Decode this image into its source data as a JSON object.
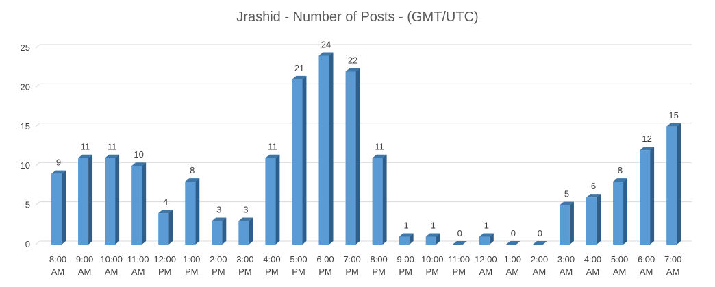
{
  "chart_data": {
    "type": "bar",
    "title": "Jrashid - Number of Posts - (GMT/UTC)",
    "xlabel": "",
    "ylabel": "",
    "ylim": [
      0,
      25
    ],
    "yticks": [
      0,
      5,
      10,
      15,
      20,
      25
    ],
    "grid": true,
    "legend": "none",
    "categories": [
      [
        "8:00",
        "AM"
      ],
      [
        "9:00",
        "AM"
      ],
      [
        "10:00",
        "AM"
      ],
      [
        "11:00",
        "AM"
      ],
      [
        "12:00",
        "PM"
      ],
      [
        "1:00",
        "PM"
      ],
      [
        "2:00",
        "PM"
      ],
      [
        "3:00",
        "PM"
      ],
      [
        "4:00",
        "PM"
      ],
      [
        "5:00",
        "PM"
      ],
      [
        "6:00",
        "PM"
      ],
      [
        "7:00",
        "PM"
      ],
      [
        "8:00",
        "PM"
      ],
      [
        "9:00",
        "PM"
      ],
      [
        "10:00",
        "PM"
      ],
      [
        "11:00",
        "PM"
      ],
      [
        "12:00",
        "AM"
      ],
      [
        "1:00",
        "AM"
      ],
      [
        "2:00",
        "AM"
      ],
      [
        "3:00",
        "AM"
      ],
      [
        "4:00",
        "AM"
      ],
      [
        "5:00",
        "AM"
      ],
      [
        "6:00",
        "AM"
      ],
      [
        "7:00",
        "AM"
      ]
    ],
    "values": [
      9,
      11,
      11,
      10,
      4,
      8,
      3,
      3,
      11,
      21,
      24,
      22,
      11,
      1,
      1,
      0,
      1,
      0,
      0,
      5,
      6,
      8,
      12,
      15
    ]
  },
  "colors": {
    "bar_front": "#5B9BD5",
    "bar_side": "#2E5F8C",
    "bar_top": "#3F76A8",
    "gridline": "#D9D9D9",
    "text": "#404040",
    "title": "#595959"
  }
}
